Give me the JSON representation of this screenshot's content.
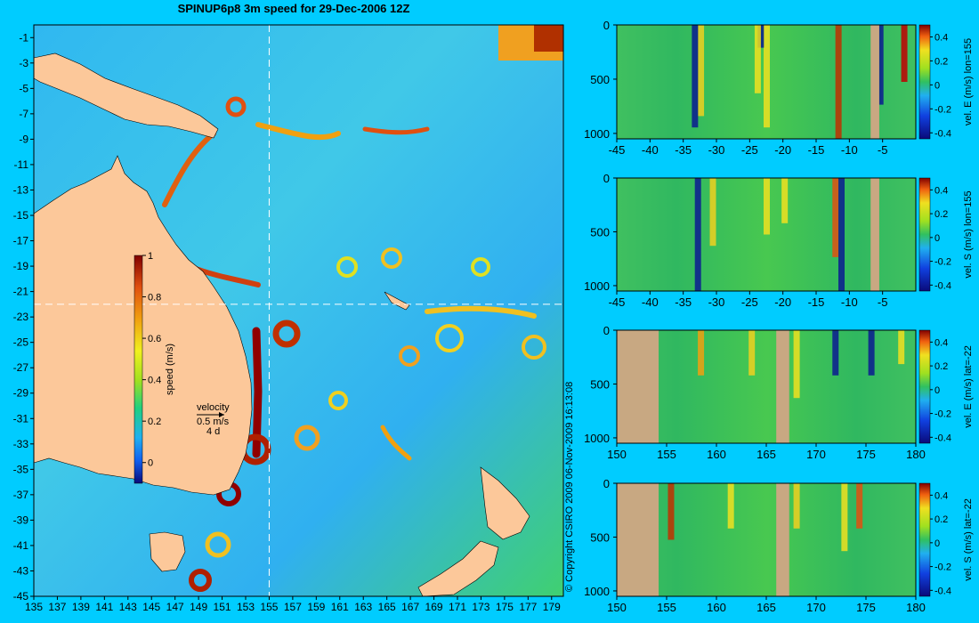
{
  "title": "SPINUP6p8 3m speed for 29-Dec-2006 12Z",
  "copyright": "© Copyright CSIRO 2009   06-Nov-2009 16:13:08",
  "colors": {
    "background": "#00ccff",
    "land": "#fcc89a",
    "section_land": "#c8a882",
    "ocean": "#30c0f0",
    "marker": "#ffffff"
  },
  "chart_data": [
    {
      "type": "heatmap",
      "title": "SPINUP6p8 3m speed for 29-Dec-2006 12Z",
      "x_ticks": [
        135,
        137,
        139,
        141,
        143,
        145,
        147,
        149,
        151,
        153,
        155,
        157,
        159,
        161,
        163,
        165,
        167,
        169,
        171,
        173,
        175,
        177,
        179
      ],
      "y_ticks": [
        -1,
        -3,
        -5,
        -7,
        -9,
        -11,
        -13,
        -15,
        -17,
        -19,
        -21,
        -23,
        -25,
        -27,
        -29,
        -31,
        -33,
        -35,
        -37,
        -39,
        -41,
        -43,
        -45
      ],
      "xlim": [
        135,
        180
      ],
      "ylim": [
        -45,
        0
      ],
      "marker_lon": 155,
      "marker_lat": -22,
      "colorbar": {
        "label": "speed (m/s)",
        "ticks": [
          0,
          0.2,
          0.4,
          0.6,
          0.8,
          1
        ],
        "min": -0.1,
        "max": 1
      },
      "velocity_key": {
        "label": "velocity",
        "speed": "0.5 m/s",
        "time": "4 d"
      }
    },
    {
      "type": "heatmap",
      "ylabel": "vel. E (m/s) lon=155",
      "x_ticks": [
        -45,
        -40,
        -35,
        -30,
        -25,
        -20,
        -15,
        -10,
        -5
      ],
      "xlim": [
        -45,
        0
      ],
      "y_ticks": [
        0,
        500,
        1000
      ],
      "ylim": [
        1050,
        0
      ],
      "land_x": [
        [
          -6.8,
          -5.5
        ]
      ],
      "colorbar": {
        "ticks": [
          -0.4,
          -0.2,
          0,
          0.2,
          0.4
        ],
        "min": -0.45,
        "max": 0.5
      }
    },
    {
      "type": "heatmap",
      "ylabel": "vel. S (m/s) lon=155",
      "x_ticks": [
        -45,
        -40,
        -35,
        -30,
        -25,
        -20,
        -15,
        -10,
        -5
      ],
      "xlim": [
        -45,
        0
      ],
      "y_ticks": [
        0,
        500,
        1000
      ],
      "ylim": [
        1050,
        0
      ],
      "land_x": [
        [
          -6.8,
          -5.5
        ]
      ],
      "colorbar": {
        "ticks": [
          -0.4,
          -0.2,
          0,
          0.2,
          0.4
        ],
        "min": -0.45,
        "max": 0.5
      }
    },
    {
      "type": "heatmap",
      "ylabel": "vel. E (m/s) lat=-22",
      "x_ticks": [
        150,
        155,
        160,
        165,
        170,
        175,
        180
      ],
      "xlim": [
        150,
        180
      ],
      "y_ticks": [
        0,
        500,
        1000
      ],
      "ylim": [
        1050,
        0
      ],
      "land_x": [
        [
          150,
          154.2
        ],
        [
          166,
          167.3
        ]
      ],
      "colorbar": {
        "ticks": [
          -0.4,
          -0.2,
          0,
          0.2,
          0.4
        ],
        "min": -0.45,
        "max": 0.5
      }
    },
    {
      "type": "heatmap",
      "ylabel": "vel. S (m/s) lat=-22",
      "x_ticks": [
        150,
        155,
        160,
        165,
        170,
        175,
        180
      ],
      "xlim": [
        150,
        180
      ],
      "y_ticks": [
        0,
        500,
        1000
      ],
      "ylim": [
        1050,
        0
      ],
      "land_x": [
        [
          150,
          154.2
        ],
        [
          166,
          167.3
        ]
      ],
      "colorbar": {
        "ticks": [
          -0.4,
          -0.2,
          0,
          0.2,
          0.4
        ],
        "min": -0.45,
        "max": 0.5
      }
    }
  ]
}
